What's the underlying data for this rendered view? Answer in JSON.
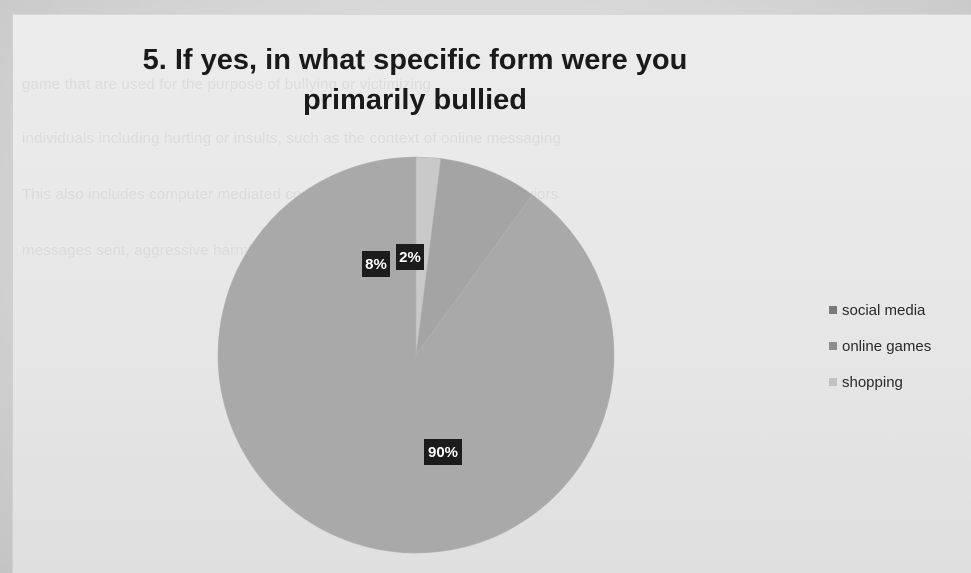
{
  "chart_data": {
    "type": "pie",
    "title": "5. If yes, in what specific form were you primarily bullied",
    "categories": [
      "social media",
      "online games",
      "shopping"
    ],
    "values": [
      90,
      8,
      2
    ],
    "data_labels": [
      "90%",
      "8%",
      "2%"
    ],
    "legend": "right",
    "colors": [
      "#a9a9a9",
      "#a4a4a4",
      "#c9c9c9"
    ]
  },
  "background_text": [
    "game that are used for the purpose of bullying or victimizing",
    "individuals including hurting or insults, such as the context of online messaging",
    "This also includes computer mediated communications, activities, or behaviors",
    "messages sent, aggressive harmful, embarrassing, threatening"
  ]
}
